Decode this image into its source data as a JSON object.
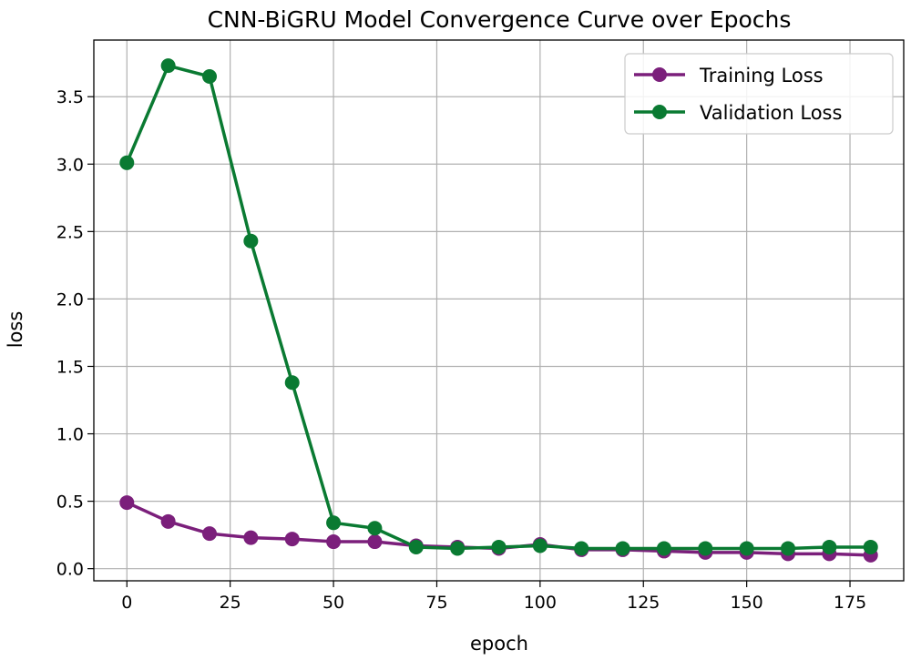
{
  "chart_data": {
    "type": "line",
    "title": "CNN-BiGRU Model Convergence Curve over Epochs",
    "xlabel": "epoch",
    "ylabel": "loss",
    "xlim": [
      -8,
      188
    ],
    "ylim": [
      -0.09,
      3.92
    ],
    "xticks": [
      0,
      25,
      50,
      75,
      100,
      125,
      150,
      175
    ],
    "yticks": [
      0.0,
      0.5,
      1.0,
      1.5,
      2.0,
      2.5,
      3.0,
      3.5
    ],
    "grid": true,
    "legend_position": "top-right",
    "x": [
      0,
      10,
      20,
      30,
      40,
      50,
      60,
      70,
      80,
      90,
      100,
      110,
      120,
      130,
      140,
      150,
      160,
      170,
      180
    ],
    "series": [
      {
        "name": "Training Loss",
        "color": "#7b1f7b",
        "values": [
          0.49,
          0.35,
          0.26,
          0.23,
          0.22,
          0.2,
          0.2,
          0.17,
          0.16,
          0.15,
          0.18,
          0.14,
          0.14,
          0.13,
          0.12,
          0.12,
          0.11,
          0.11,
          0.1
        ]
      },
      {
        "name": "Validation Loss",
        "color": "#0a7a32",
        "values": [
          3.01,
          3.73,
          3.65,
          2.43,
          1.38,
          0.34,
          0.3,
          0.16,
          0.15,
          0.16,
          0.17,
          0.15,
          0.15,
          0.15,
          0.15,
          0.15,
          0.15,
          0.16,
          0.16
        ]
      }
    ]
  }
}
